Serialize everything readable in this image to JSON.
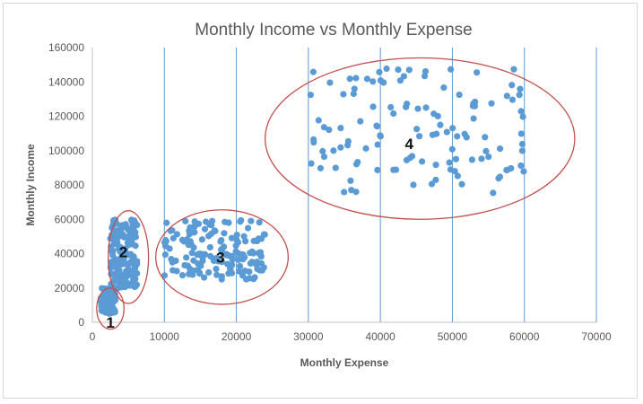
{
  "chart_data": {
    "type": "scatter",
    "title": "Monthly Income vs Monthly Expense",
    "xlabel": "Monthly Expense",
    "ylabel": "Monthly Income",
    "xlim": [
      0,
      70000
    ],
    "ylim": [
      0,
      160000
    ],
    "x_ticks": [
      "0",
      "10000",
      "20000",
      "30000",
      "40000",
      "50000",
      "60000",
      "70000"
    ],
    "y_ticks": [
      "0",
      "20000",
      "40000",
      "60000",
      "80000",
      "100000",
      "120000",
      "140000",
      "160000"
    ],
    "grid": "vertical",
    "legend": "none",
    "point_color": "#5b9bd5",
    "annotation_color": "#c0504d",
    "gridline_color": "#5b9bd5",
    "annotations": [
      {
        "label": "1",
        "center": [
          2500,
          8000
        ],
        "radius": [
          1900,
          12000
        ],
        "label_at": [
          2500,
          0
        ]
      },
      {
        "label": "2",
        "center": [
          5000,
          38000
        ],
        "radius": [
          2800,
          27000
        ],
        "label_at": [
          4300,
          41000
        ]
      },
      {
        "label": "3",
        "center": [
          18000,
          38000
        ],
        "radius": [
          9200,
          27500
        ],
        "label_at": [
          17800,
          38000
        ]
      },
      {
        "label": "4",
        "center": [
          45500,
          107000
        ],
        "radius": [
          21500,
          47000
        ],
        "label_at": [
          44000,
          104000
        ]
      }
    ],
    "clusters": [
      {
        "name": "1",
        "x_range": [
          1000,
          3200
        ],
        "y_range": [
          5000,
          20000
        ],
        "count": 75
      },
      {
        "name": "2",
        "x_range": [
          2500,
          6200
        ],
        "y_range": [
          20000,
          60000
        ],
        "count": 160
      },
      {
        "name": "3",
        "x_range": [
          10000,
          24000
        ],
        "y_range": [
          25000,
          60000
        ],
        "count": 150
      },
      {
        "name": "4",
        "x_range": [
          30000,
          60000
        ],
        "y_range": [
          75000,
          148000
        ],
        "count": 120
      }
    ]
  }
}
